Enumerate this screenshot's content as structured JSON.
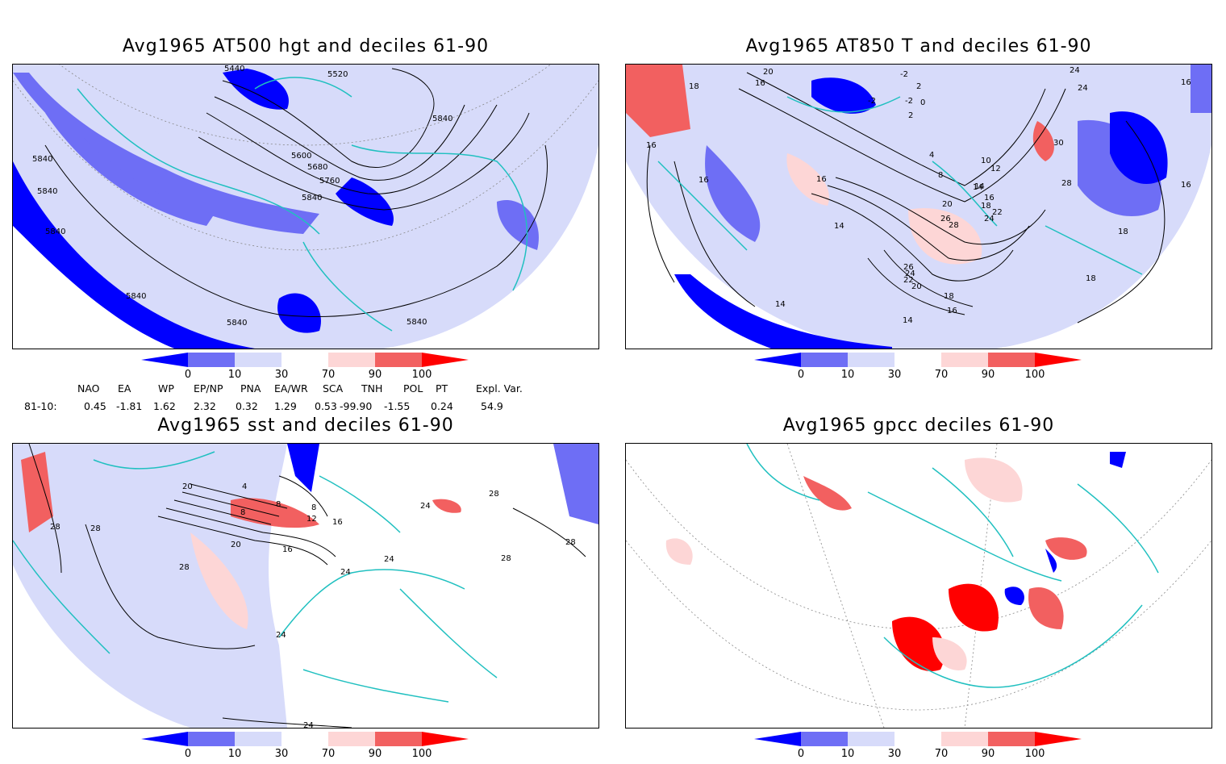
{
  "panels": [
    {
      "id": "p1",
      "title": "Avg1965 AT500 hgt and deciles 61-90",
      "contour_labels": [
        "5440",
        "5520",
        "5600",
        "5680",
        "5760",
        "5840",
        "5840",
        "5840",
        "5840",
        "5840",
        "5840",
        "5840",
        "5840"
      ]
    },
    {
      "id": "p2",
      "title": "Avg1965 AT850 T and deciles 61-90",
      "contour_labels": [
        "20",
        "18",
        "16",
        "-2",
        "-2",
        "-2",
        "0",
        "2",
        "2",
        "24",
        "24",
        "16",
        "16",
        "16",
        "16",
        "14",
        "14",
        "14",
        "14",
        "10",
        "12",
        "8",
        "4",
        "14",
        "16",
        "18",
        "20",
        "22",
        "24",
        "26",
        "28",
        "30",
        "28",
        "26",
        "24",
        "22",
        "20",
        "18",
        "16",
        "16",
        "18",
        "18"
      ]
    },
    {
      "id": "p3",
      "title": "Avg1965 sst and deciles 61-90",
      "contour_labels": [
        "20",
        "28",
        "28",
        "28",
        "24",
        "24",
        "24",
        "24",
        "24",
        "20",
        "16",
        "12",
        "8",
        "8",
        "4",
        "8",
        "28",
        "28",
        "28",
        "16"
      ]
    },
    {
      "id": "p4",
      "title": "Avg1965 gpcc deciles 61-90",
      "contour_labels": []
    }
  ],
  "colorbar": {
    "tick_labels": [
      "0",
      "10",
      "30",
      "70",
      "90",
      "100"
    ],
    "colors": [
      "#0000ff",
      "#6e6ef5",
      "#d7dbfa",
      "#ffffff",
      "#fdd6d6",
      "#f26060",
      "#ff0000"
    ]
  },
  "indices": {
    "headers": [
      "NAO",
      "EA",
      "WP",
      "EP/NP",
      "PNA",
      "EA/WR",
      "SCA",
      "TNH",
      "POL",
      "PT",
      "Expl. Var."
    ],
    "row_label": "81-10:",
    "values": [
      "0.45",
      "-1.81",
      "1.62",
      "2.32",
      "0.32",
      "1.29",
      "0.53",
      "-99.90",
      "-1.55",
      "0.24",
      "54.9"
    ]
  }
}
